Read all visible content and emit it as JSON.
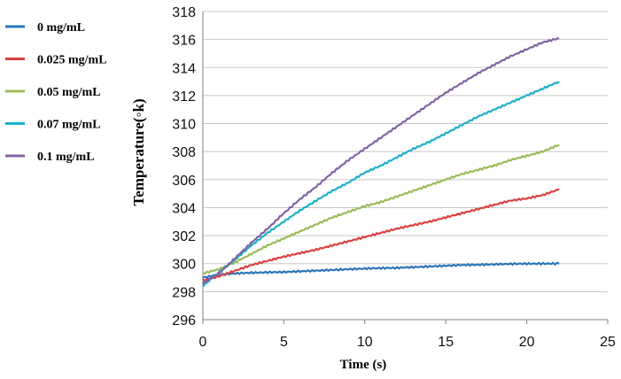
{
  "chart_data": {
    "type": "line",
    "title": "",
    "xlabel": "Time (s)",
    "ylabel": "Temperature(◦k)",
    "xlim": [
      0,
      25
    ],
    "ylim": [
      296,
      318
    ],
    "xticks": [
      0,
      5,
      10,
      15,
      20,
      25
    ],
    "yticks": [
      296,
      298,
      300,
      302,
      304,
      306,
      308,
      310,
      312,
      314,
      316,
      318
    ],
    "grid": "horizontal",
    "legend_position": "left",
    "series": [
      {
        "name": "0 mg/mL",
        "color": "#2e75b6",
        "x": [
          0,
          1,
          2,
          3,
          4,
          5,
          6,
          7,
          8,
          9,
          10,
          11,
          12,
          13,
          14,
          15,
          16,
          17,
          18,
          19,
          20,
          21,
          22
        ],
        "y": [
          299.0,
          299.2,
          299.3,
          299.35,
          299.38,
          299.4,
          299.45,
          299.5,
          299.55,
          299.6,
          299.65,
          299.68,
          299.7,
          299.75,
          299.8,
          299.85,
          299.9,
          299.92,
          299.95,
          299.98,
          300.0,
          300.0,
          300.0
        ]
      },
      {
        "name": "0.025 mg/mL",
        "color": "#d9413f",
        "x": [
          0,
          1,
          2,
          3,
          4,
          5,
          6,
          7,
          8,
          9,
          10,
          11,
          12,
          13,
          14,
          15,
          16,
          17,
          18,
          19,
          20,
          21,
          22
        ],
        "y": [
          298.8,
          299.1,
          299.5,
          299.9,
          300.2,
          300.5,
          300.75,
          301.0,
          301.3,
          301.6,
          301.9,
          302.2,
          302.5,
          302.75,
          303.0,
          303.3,
          303.6,
          303.9,
          304.2,
          304.5,
          304.65,
          304.9,
          305.3
        ]
      },
      {
        "name": "0.05 mg/mL",
        "color": "#9bbb59",
        "x": [
          0,
          1,
          2,
          3,
          4,
          5,
          6,
          7,
          8,
          9,
          10,
          11,
          12,
          13,
          14,
          15,
          16,
          17,
          18,
          19,
          20,
          21,
          22
        ],
        "y": [
          299.3,
          299.6,
          300.1,
          300.7,
          301.3,
          301.8,
          302.3,
          302.8,
          303.3,
          303.7,
          304.1,
          304.4,
          304.8,
          305.2,
          305.6,
          306.0,
          306.4,
          306.7,
          307.0,
          307.4,
          307.7,
          308.0,
          308.5
        ]
      },
      {
        "name": "0.07 mg/mL",
        "color": "#1fb0c8",
        "x": [
          0,
          1,
          2,
          3,
          4,
          5,
          6,
          7,
          8,
          9,
          10,
          11,
          12,
          13,
          14,
          15,
          16,
          17,
          18,
          19,
          20,
          21,
          22
        ],
        "y": [
          298.4,
          299.4,
          300.3,
          301.3,
          302.2,
          303.0,
          303.8,
          304.5,
          305.2,
          305.8,
          306.5,
          307.0,
          307.6,
          308.2,
          308.7,
          309.3,
          309.9,
          310.5,
          311.0,
          311.5,
          312.0,
          312.5,
          313.0
        ]
      },
      {
        "name": "0.1 mg/mL",
        "color": "#8064a2",
        "x": [
          0,
          1,
          2,
          3,
          4,
          5,
          6,
          7,
          8,
          9,
          10,
          11,
          12,
          13,
          14,
          15,
          16,
          17,
          18,
          19,
          20,
          21,
          22
        ],
        "y": [
          298.6,
          299.3,
          300.4,
          301.5,
          302.5,
          303.6,
          304.6,
          305.5,
          306.5,
          307.4,
          308.2,
          309.0,
          309.8,
          310.6,
          311.4,
          312.2,
          312.9,
          313.6,
          314.2,
          314.8,
          315.3,
          315.8,
          316.1
        ]
      }
    ]
  }
}
